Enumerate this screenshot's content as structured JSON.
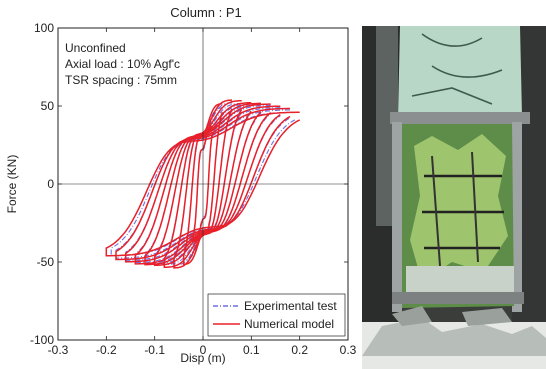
{
  "chart_data": {
    "type": "line",
    "title": "Column : P1",
    "xlabel": "Disp (m)",
    "ylabel": "Force (KN)",
    "xlim": [
      -0.3,
      0.3
    ],
    "ylim": [
      -100,
      100
    ],
    "xticks": [
      -0.3,
      -0.2,
      -0.1,
      0,
      0.1,
      0.2,
      0.3
    ],
    "yticks": [
      -100,
      -50,
      0,
      50,
      100
    ],
    "xtick_labels": [
      "-0.3",
      "-0.2",
      "-0.1",
      "0",
      "0.1",
      "0.2",
      "0.3"
    ],
    "ytick_labels": [
      "-100",
      "-50",
      "0",
      "50",
      "100"
    ],
    "grid": false,
    "legend_position": "bottom-right",
    "annotations": [
      "Unconfined",
      "Axial load : 10% Agf'c",
      "TSR spacing : 75mm"
    ],
    "series": [
      {
        "name": "Experimental test",
        "color": "#6f6fe0",
        "style": "dash-dot",
        "cycles": [
          {
            "amp": 0.02,
            "peak_force": 40
          },
          {
            "amp": 0.04,
            "peak_force": 55
          },
          {
            "amp": 0.06,
            "peak_force": 58
          },
          {
            "amp": 0.08,
            "peak_force": 57
          },
          {
            "amp": 0.1,
            "peak_force": 56
          },
          {
            "amp": 0.12,
            "peak_force": 55
          },
          {
            "amp": 0.14,
            "peak_force": 54
          },
          {
            "amp": 0.16,
            "peak_force": 52
          },
          {
            "amp": 0.18,
            "peak_force": 50
          },
          {
            "amp": 0.19,
            "peak_force": 48
          }
        ]
      },
      {
        "name": "Numerical model",
        "color": "#e8202a",
        "style": "solid",
        "cycles": [
          {
            "amp": 0.02,
            "peak_force": 42
          },
          {
            "amp": 0.04,
            "peak_force": 58
          },
          {
            "amp": 0.06,
            "peak_force": 60
          },
          {
            "amp": 0.08,
            "peak_force": 59
          },
          {
            "amp": 0.1,
            "peak_force": 57
          },
          {
            "amp": 0.12,
            "peak_force": 56
          },
          {
            "amp": 0.14,
            "peak_force": 55
          },
          {
            "amp": 0.16,
            "peak_force": 53
          },
          {
            "amp": 0.18,
            "peak_force": 51
          },
          {
            "amp": 0.2,
            "peak_force": 48
          }
        ]
      }
    ]
  }
}
